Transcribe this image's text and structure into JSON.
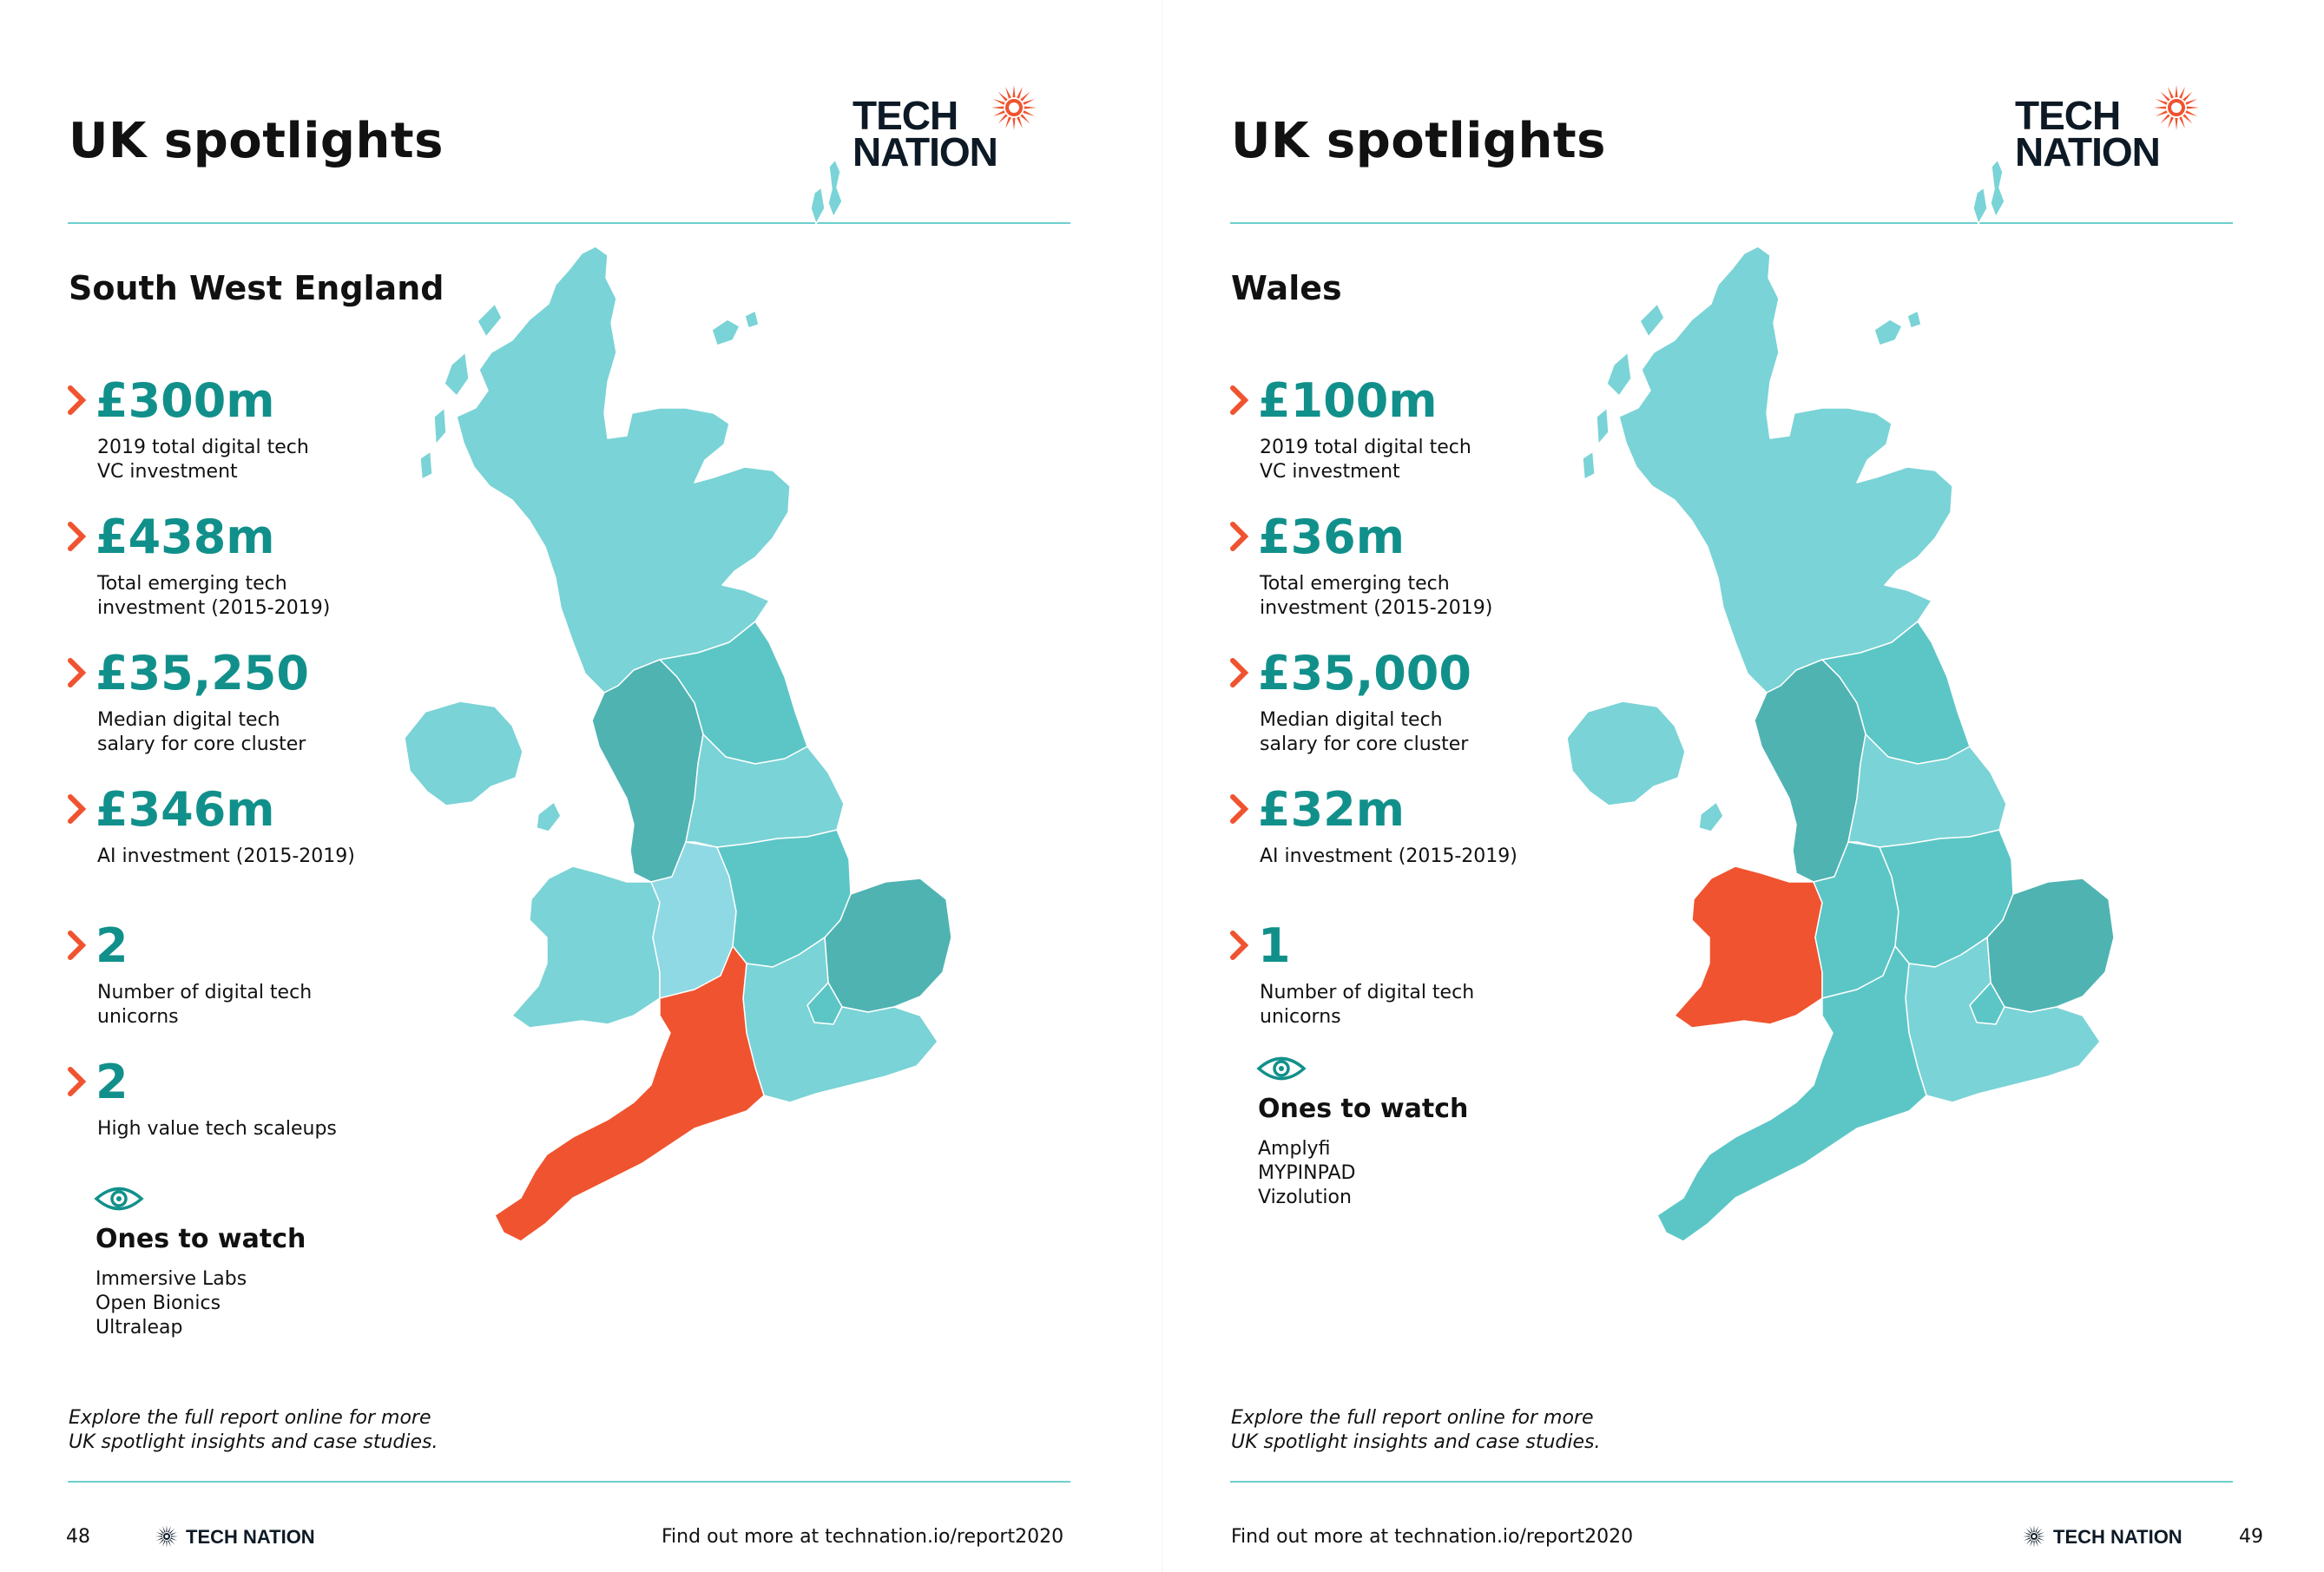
{
  "colors": {
    "accent_teal": "#11908b",
    "map_light": "#7ad3d6",
    "map_mid": "#5cc6c6",
    "map_dark": "#4fb3b2",
    "map_lavender": "#8fd9e4",
    "highlight": "#f0532f",
    "rule": "#6ccfcc"
  },
  "brand": {
    "line1": "TECH",
    "line2": "NATION",
    "footer_name": "TECH NATION"
  },
  "left_page": {
    "title": "UK spotlights",
    "region": "South West England",
    "stats": [
      {
        "value": "£300m",
        "label": "2019 total digital tech\nVC investment"
      },
      {
        "value": "£438m",
        "label": "Total emerging tech\ninvestment (2015-2019)"
      },
      {
        "value": "£35,250",
        "label": "Median digital tech\nsalary for core cluster"
      },
      {
        "value": "£346m",
        "label": "AI investment (2015-2019)"
      },
      {
        "value": "2",
        "label": "Number of digital tech\nunicorns"
      },
      {
        "value": "2",
        "label": "High value tech scaleups"
      }
    ],
    "ones_to_watch": {
      "title": "Ones to watch",
      "items": [
        "Immersive Labs",
        "Open Bionics",
        "Ultraleap"
      ]
    },
    "cta_line1": "Explore the full report online for more",
    "cta_line2": "UK spotlight insights and case studies.",
    "page_number": "48",
    "footer_link": "Find out more at technation.io/report2020",
    "highlighted_region": "South West England"
  },
  "right_page": {
    "title": "UK spotlights",
    "region": "Wales",
    "stats": [
      {
        "value": "£100m",
        "label": "2019 total digital tech\nVC investment"
      },
      {
        "value": "£36m",
        "label": "Total emerging tech\ninvestment (2015-2019)"
      },
      {
        "value": "£35,000",
        "label": "Median digital tech\nsalary for core cluster"
      },
      {
        "value": "£32m",
        "label": "AI investment (2015-2019)"
      },
      {
        "value": "1",
        "label": "Number of digital tech\nunicorns"
      }
    ],
    "ones_to_watch": {
      "title": "Ones to watch",
      "items": [
        "Amplyfi",
        "MYPINPAD",
        "Vizolution"
      ]
    },
    "cta_line1": "Explore the full report online for more",
    "cta_line2": "UK spotlight insights and case studies.",
    "page_number": "49",
    "footer_link": "Find out more at technation.io/report2020",
    "highlighted_region": "Wales"
  }
}
